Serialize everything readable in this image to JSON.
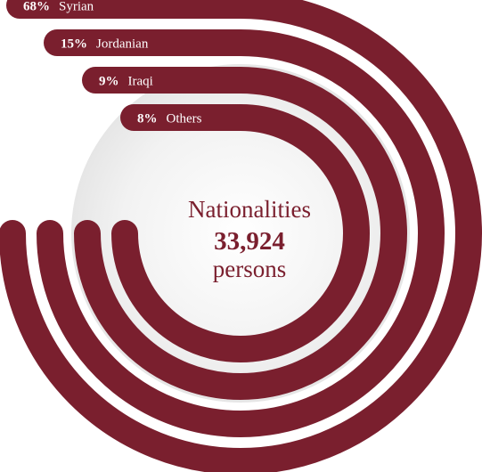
{
  "chart_data": {
    "type": "radial-bar",
    "title": "Nationalities",
    "total_value": "33,924",
    "total_unit": "persons",
    "categories": [
      "Syrian",
      "Jordanian",
      "Iraqi",
      "Others"
    ],
    "values": [
      68,
      15,
      9,
      8
    ],
    "value_labels": [
      "68%",
      "15%",
      "9%",
      "8%"
    ],
    "unit": "%",
    "colors": {
      "bar": "#7a1f2e",
      "bar_shade": "#5e1522",
      "text": "#ffffff",
      "center_text": "#7a1f2e"
    }
  }
}
